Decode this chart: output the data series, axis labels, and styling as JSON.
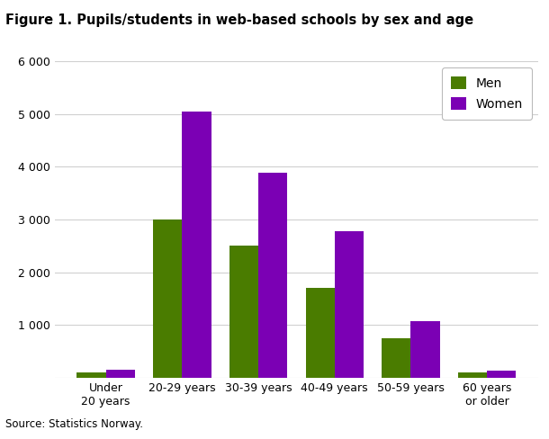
{
  "title": "Figure 1. Pupils/students in web-based schools by sex and age",
  "categories": [
    "Under\n20 years",
    "20-29 years",
    "30-39 years",
    "40-49 years",
    "50-59 years",
    "60 years\nor older"
  ],
  "men_values": [
    100,
    3000,
    2500,
    1700,
    750,
    100
  ],
  "women_values": [
    150,
    5050,
    3880,
    2775,
    1075,
    130
  ],
  "men_color": "#4a7c00",
  "women_color": "#7b00b4",
  "ylim": [
    0,
    6000
  ],
  "yticks": [
    0,
    1000,
    2000,
    3000,
    4000,
    5000,
    6000
  ],
  "ytick_labels": [
    "",
    "1 000",
    "2 000",
    "3 000",
    "4 000",
    "5 000",
    "6 000"
  ],
  "legend_labels": [
    "Men",
    "Women"
  ],
  "source_text": "Source: Statistics Norway.",
  "background_color": "#ffffff",
  "grid_color": "#d0d0d0",
  "title_fontsize": 10.5,
  "axis_fontsize": 9,
  "legend_fontsize": 10,
  "source_fontsize": 8.5,
  "bar_width": 0.38
}
